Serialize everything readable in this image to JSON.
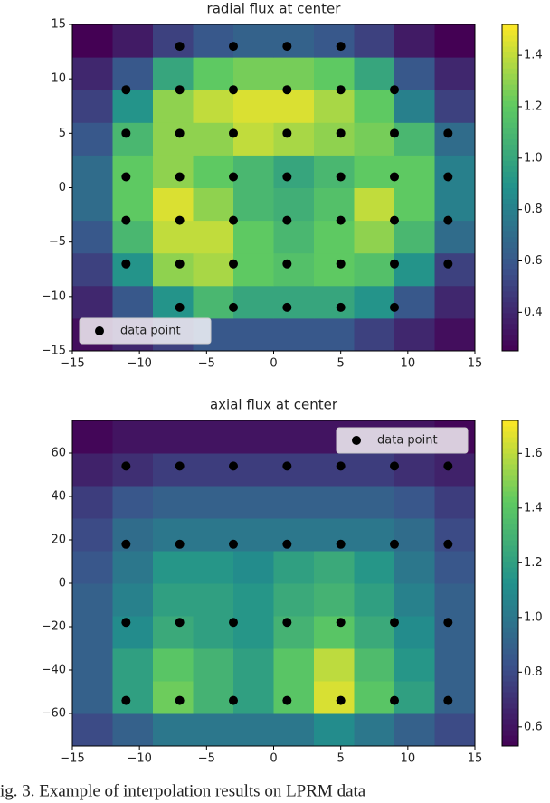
{
  "chart_data": [
    {
      "type": "heatmap",
      "title": "radial flux at center",
      "colormap": "viridis",
      "xlim": [
        -15,
        15
      ],
      "ylim": [
        -15,
        15
      ],
      "xticks": [
        {
          "value": -15,
          "label": "−15"
        },
        {
          "value": -10,
          "label": "−10"
        },
        {
          "value": -5,
          "label": "−5"
        },
        0,
        5,
        10,
        15
      ],
      "yticks": [
        {
          "value": -15,
          "label": "−15"
        },
        {
          "value": -10,
          "label": "−10"
        },
        {
          "value": -5,
          "label": "−5"
        },
        0,
        5,
        10,
        15
      ],
      "clim": [
        0.25,
        1.52
      ],
      "cticks": [
        0.4,
        0.6,
        0.8,
        {
          "value": 1,
          "label": "1.0"
        },
        1.2,
        1.4
      ],
      "legend": "lower left",
      "z": [
        [
          0.3,
          0.4,
          0.5,
          0.6,
          0.6,
          0.6,
          0.6,
          0.5,
          0.4,
          0.3
        ],
        [
          0.4,
          0.6,
          0.9,
          1.1,
          1.0,
          1.0,
          1.0,
          0.9,
          0.6,
          0.4
        ],
        [
          0.5,
          0.9,
          1.3,
          1.35,
          1.2,
          1.15,
          1.2,
          1.15,
          0.9,
          0.5
        ],
        [
          0.6,
          1.1,
          1.4,
          1.4,
          1.2,
          1.1,
          1.2,
          1.3,
          1.1,
          0.7
        ],
        [
          0.7,
          1.2,
          1.45,
          1.3,
          1.1,
          1.05,
          1.15,
          1.4,
          1.2,
          0.8
        ],
        [
          0.7,
          1.2,
          1.3,
          1.2,
          1.1,
          1.0,
          1.1,
          1.2,
          1.2,
          0.8
        ],
        [
          0.6,
          1.1,
          1.3,
          1.3,
          1.4,
          1.35,
          1.3,
          1.25,
          1.1,
          0.7
        ],
        [
          0.5,
          0.9,
          1.3,
          1.4,
          1.45,
          1.45,
          1.35,
          1.2,
          0.8,
          0.5
        ],
        [
          0.4,
          0.6,
          1.0,
          1.2,
          1.25,
          1.25,
          1.2,
          1.0,
          0.6,
          0.4
        ],
        [
          0.25,
          0.35,
          0.5,
          0.6,
          0.65,
          0.65,
          0.6,
          0.5,
          0.35,
          0.25
        ]
      ],
      "series": [
        {
          "name": "data point",
          "color": "#000000",
          "x": [
            -7,
            -3,
            1,
            5,
            -11,
            -7,
            -3,
            1,
            5,
            9,
            -11,
            -7,
            -3,
            1,
            5,
            9,
            13,
            -11,
            -7,
            -3,
            1,
            5,
            9,
            13,
            -11,
            -7,
            -3,
            1,
            5,
            9,
            13,
            -11,
            -7,
            -3,
            1,
            5,
            9,
            13,
            -7,
            -3,
            1,
            5,
            9
          ],
          "y": [
            13,
            13,
            13,
            13,
            9,
            9,
            9,
            9,
            9,
            9,
            5,
            5,
            5,
            5,
            5,
            5,
            5,
            1,
            1,
            1,
            1,
            1,
            1,
            1,
            -3,
            -3,
            -3,
            -3,
            -3,
            -3,
            -3,
            -7,
            -7,
            -7,
            -7,
            -7,
            -7,
            -7,
            -11,
            -11,
            -11,
            -11,
            -11
          ]
        }
      ]
    },
    {
      "type": "heatmap",
      "title": "axial flux at center",
      "colormap": "viridis",
      "xlim": [
        -15,
        15
      ],
      "ylim": [
        -75,
        75
      ],
      "xticks": [
        {
          "value": -15,
          "label": "−15"
        },
        {
          "value": -10,
          "label": "−10"
        },
        {
          "value": -5,
          "label": "−5"
        },
        0,
        5,
        10,
        15
      ],
      "yticks": [
        {
          "value": -60,
          "label": "−60"
        },
        {
          "value": -40,
          "label": "−40"
        },
        {
          "value": -20,
          "label": "−20"
        },
        0,
        20,
        40,
        60
      ],
      "clim": [
        0.53,
        1.72
      ],
      "cticks": [
        0.6,
        0.8,
        {
          "value": 1,
          "label": "1.0"
        },
        1.2,
        1.4,
        1.6
      ],
      "legend": "upper right",
      "z": [
        [
          0.8,
          0.9,
          1.0,
          1.0,
          1.0,
          1.0,
          1.1,
          1.0,
          0.9,
          0.8
        ],
        [
          0.9,
          1.2,
          1.45,
          1.3,
          1.2,
          1.4,
          1.65,
          1.4,
          1.2,
          0.9
        ],
        [
          0.9,
          1.2,
          1.4,
          1.3,
          1.2,
          1.4,
          1.6,
          1.35,
          1.15,
          0.9
        ],
        [
          0.9,
          1.1,
          1.25,
          1.2,
          1.15,
          1.3,
          1.4,
          1.25,
          1.1,
          0.9
        ],
        [
          0.9,
          1.05,
          1.2,
          1.2,
          1.15,
          1.25,
          1.3,
          1.2,
          1.05,
          0.9
        ],
        [
          0.85,
          1.0,
          1.15,
          1.15,
          1.1,
          1.2,
          1.25,
          1.15,
          1.0,
          0.85
        ],
        [
          0.8,
          0.95,
          1.0,
          1.0,
          1.0,
          1.0,
          1.0,
          1.0,
          0.95,
          0.8
        ],
        [
          0.75,
          0.85,
          0.9,
          0.9,
          0.9,
          0.9,
          0.9,
          0.9,
          0.85,
          0.75
        ],
        [
          0.65,
          0.7,
          0.75,
          0.75,
          0.75,
          0.75,
          0.75,
          0.75,
          0.7,
          0.65
        ],
        [
          0.55,
          0.6,
          0.6,
          0.6,
          0.6,
          0.6,
          0.6,
          0.6,
          0.6,
          0.55
        ]
      ],
      "series": [
        {
          "name": "data point",
          "color": "#000000",
          "x": [
            -11,
            -7,
            -3,
            1,
            5,
            9,
            13,
            -11,
            -7,
            -3,
            1,
            5,
            9,
            13,
            -11,
            -7,
            -3,
            1,
            5,
            9,
            13,
            -11,
            -7,
            -3,
            1,
            5,
            9,
            13
          ],
          "y": [
            54,
            54,
            54,
            54,
            54,
            54,
            54,
            18,
            18,
            18,
            18,
            18,
            18,
            18,
            -18,
            -18,
            -18,
            -18,
            -18,
            -18,
            -18,
            -54,
            -54,
            -54,
            -54,
            -54,
            -54,
            -54
          ]
        }
      ]
    }
  ],
  "caption": "ig. 3. Example of interpolation results on LPRM data"
}
